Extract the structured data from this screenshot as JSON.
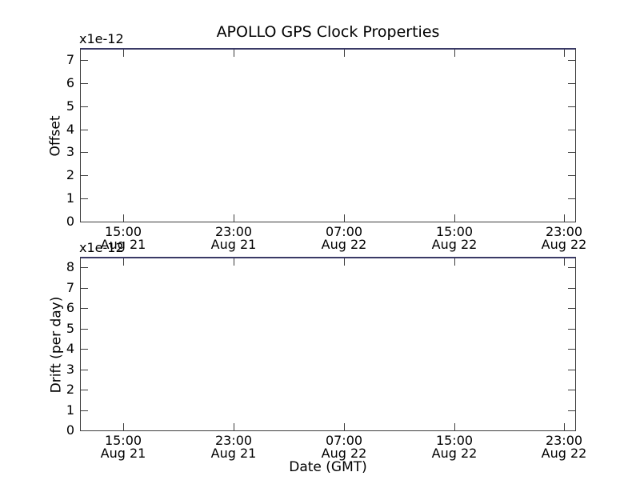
{
  "figure": {
    "title": "APOLLO GPS Clock Properties",
    "background_color": "#ffffff",
    "frame_color": "#3d3d3d",
    "top_frame_color": "#3a3a66",
    "text_color": "#000000"
  },
  "chart_data": [
    {
      "type": "line",
      "title": "APOLLO GPS Clock Properties",
      "ylabel": "Offset",
      "y_scale_label": "x1e-12",
      "yticks": [
        0,
        1,
        2,
        3,
        4,
        5,
        6,
        7
      ],
      "ylim": [
        0,
        7.45
      ],
      "xlim_hours": [
        11.9,
        47.8
      ],
      "xticks": [
        {
          "hour": 15,
          "time": "15:00",
          "date": "Aug 21"
        },
        {
          "hour": 23,
          "time": "23:00",
          "date": "Aug 21"
        },
        {
          "hour": 31,
          "time": "07:00",
          "date": "Aug 22"
        },
        {
          "hour": 39,
          "time": "15:00",
          "date": "Aug 22"
        },
        {
          "hour": 47,
          "time": "23:00",
          "date": "Aug 22"
        }
      ],
      "series": [],
      "grid": false,
      "legend": null,
      "plot_area_empty": true
    },
    {
      "type": "line",
      "ylabel": "Drift (per day)",
      "y_scale_label": "x1e-12",
      "xlabel": "Date (GMT)",
      "yticks": [
        0,
        1,
        2,
        3,
        4,
        5,
        6,
        7,
        8
      ],
      "ylim": [
        0,
        8.45
      ],
      "xlim_hours": [
        11.9,
        47.8
      ],
      "xticks": [
        {
          "hour": 15,
          "time": "15:00",
          "date": "Aug 21"
        },
        {
          "hour": 23,
          "time": "23:00",
          "date": "Aug 21"
        },
        {
          "hour": 31,
          "time": "07:00",
          "date": "Aug 22"
        },
        {
          "hour": 39,
          "time": "15:00",
          "date": "Aug 22"
        },
        {
          "hour": 47,
          "time": "23:00",
          "date": "Aug 22"
        }
      ],
      "series": [],
      "grid": false,
      "legend": null,
      "plot_area_empty": true
    }
  ]
}
